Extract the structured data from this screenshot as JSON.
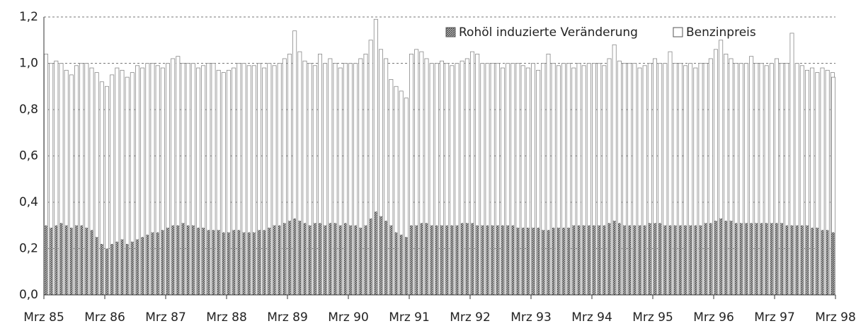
{
  "chart_data": {
    "type": "bar",
    "categories": [
      "Mrz 85",
      null,
      null,
      null,
      null,
      null,
      null,
      null,
      null,
      null,
      null,
      null,
      "Mrz 86",
      null,
      null,
      null,
      null,
      null,
      null,
      null,
      null,
      null,
      null,
      null,
      "Mrz 87",
      null,
      null,
      null,
      null,
      null,
      null,
      null,
      null,
      null,
      null,
      null,
      "Mrz 88",
      null,
      null,
      null,
      null,
      null,
      null,
      null,
      null,
      null,
      null,
      null,
      "Mrz 89",
      null,
      null,
      null,
      null,
      null,
      null,
      null,
      null,
      null,
      null,
      null,
      "Mrz 90",
      null,
      null,
      null,
      null,
      null,
      null,
      null,
      null,
      null,
      null,
      null,
      "Mrz 91",
      null,
      null,
      null,
      null,
      null,
      null,
      null,
      null,
      null,
      null,
      null,
      "Mrz 92",
      null,
      null,
      null,
      null,
      null,
      null,
      null,
      null,
      null,
      null,
      null,
      "Mrz 93",
      null,
      null,
      null,
      null,
      null,
      null,
      null,
      null,
      null,
      null,
      null,
      "Mrz 94",
      null,
      null,
      null,
      null,
      null,
      null,
      null,
      null,
      null,
      null,
      null,
      "Mrz 95",
      null,
      null,
      null,
      null,
      null,
      null,
      null,
      null,
      null,
      null,
      null,
      "Mrz 96",
      null,
      null,
      null,
      null,
      null,
      null,
      null,
      null,
      null,
      null,
      null,
      "Mrz 97",
      null,
      null,
      null,
      null,
      null,
      null,
      null,
      null,
      null,
      null,
      null,
      "Mrz 98"
    ],
    "series": [
      {
        "name": "Benzinpreis",
        "color": "#ffffff",
        "hatch": false,
        "values": [
          1.04,
          1.0,
          1.01,
          1.0,
          0.97,
          0.95,
          0.99,
          1.0,
          1.0,
          0.98,
          0.96,
          0.92,
          0.9,
          0.95,
          0.98,
          0.97,
          0.94,
          0.96,
          0.99,
          0.98,
          1.0,
          1.0,
          0.99,
          0.98,
          1.0,
          1.02,
          1.03,
          1.0,
          1.0,
          1.0,
          0.98,
          0.99,
          1.0,
          1.0,
          0.97,
          0.96,
          0.97,
          0.98,
          1.0,
          1.0,
          0.99,
          0.99,
          1.0,
          0.98,
          1.0,
          0.99,
          1.0,
          1.02,
          1.04,
          1.14,
          1.05,
          1.01,
          1.0,
          0.99,
          1.04,
          1.0,
          1.02,
          1.0,
          0.98,
          1.0,
          1.0,
          1.0,
          1.02,
          1.04,
          1.1,
          1.19,
          1.06,
          1.02,
          0.93,
          0.9,
          0.88,
          0.85,
          1.04,
          1.06,
          1.05,
          1.02,
          1.0,
          1.0,
          1.01,
          1.0,
          0.99,
          1.0,
          1.01,
          1.02,
          1.05,
          1.04,
          1.0,
          1.0,
          1.0,
          1.0,
          0.98,
          1.0,
          1.0,
          1.0,
          0.99,
          0.98,
          1.0,
          0.97,
          1.0,
          1.04,
          1.0,
          0.99,
          1.0,
          1.0,
          0.98,
          1.0,
          0.99,
          1.0,
          1.0,
          1.0,
          0.99,
          1.02,
          1.08,
          1.01,
          1.0,
          1.0,
          1.0,
          0.98,
          0.99,
          1.0,
          1.02,
          1.0,
          1.0,
          1.05,
          1.0,
          1.0,
          0.99,
          1.0,
          0.98,
          1.0,
          1.0,
          1.02,
          1.06,
          1.1,
          1.04,
          1.02,
          1.0,
          1.0,
          1.0,
          1.03,
          1.0,
          1.0,
          0.99,
          1.0,
          1.02,
          1.0,
          1.0,
          1.13,
          1.0,
          0.99,
          0.97,
          0.98,
          0.96,
          0.98,
          0.97,
          0.96,
          0.94
        ]
      },
      {
        "name": "Rohöl induzierte Veränderung",
        "color": "#5a5a5a",
        "hatch": true,
        "values": [
          0.3,
          0.29,
          0.3,
          0.31,
          0.3,
          0.29,
          0.3,
          0.3,
          0.29,
          0.28,
          0.25,
          0.22,
          0.2,
          0.22,
          0.23,
          0.24,
          0.22,
          0.23,
          0.24,
          0.25,
          0.26,
          0.27,
          0.27,
          0.28,
          0.29,
          0.3,
          0.3,
          0.31,
          0.3,
          0.3,
          0.29,
          0.29,
          0.28,
          0.28,
          0.28,
          0.27,
          0.27,
          0.28,
          0.28,
          0.27,
          0.27,
          0.27,
          0.28,
          0.28,
          0.29,
          0.3,
          0.3,
          0.31,
          0.32,
          0.33,
          0.32,
          0.31,
          0.3,
          0.31,
          0.31,
          0.3,
          0.31,
          0.31,
          0.3,
          0.31,
          0.3,
          0.3,
          0.29,
          0.3,
          0.33,
          0.36,
          0.34,
          0.32,
          0.3,
          0.27,
          0.26,
          0.25,
          0.3,
          0.3,
          0.31,
          0.31,
          0.3,
          0.3,
          0.3,
          0.3,
          0.3,
          0.3,
          0.31,
          0.31,
          0.31,
          0.3,
          0.3,
          0.3,
          0.3,
          0.3,
          0.3,
          0.3,
          0.3,
          0.29,
          0.29,
          0.29,
          0.29,
          0.29,
          0.28,
          0.28,
          0.29,
          0.29,
          0.29,
          0.29,
          0.3,
          0.3,
          0.3,
          0.3,
          0.3,
          0.3,
          0.3,
          0.31,
          0.32,
          0.31,
          0.3,
          0.3,
          0.3,
          0.3,
          0.3,
          0.31,
          0.31,
          0.31,
          0.3,
          0.3,
          0.3,
          0.3,
          0.3,
          0.3,
          0.3,
          0.3,
          0.31,
          0.31,
          0.32,
          0.33,
          0.32,
          0.32,
          0.31,
          0.31,
          0.31,
          0.31,
          0.31,
          0.31,
          0.31,
          0.31,
          0.31,
          0.31,
          0.3,
          0.3,
          0.3,
          0.3,
          0.3,
          0.29,
          0.29,
          0.28,
          0.28,
          0.27,
          0.27
        ]
      }
    ],
    "ylim": [
      0,
      1.2
    ],
    "yticks": [
      {
        "value": 0,
        "label": "0,0"
      },
      {
        "value": 0.2,
        "label": "0,2"
      },
      {
        "value": 0.4,
        "label": "0,4"
      },
      {
        "value": 0.6,
        "label": "0,6"
      },
      {
        "value": 0.8,
        "label": "0,8"
      },
      {
        "value": 1.0,
        "label": "1,0"
      },
      {
        "value": 1.2,
        "label": "1,2"
      }
    ],
    "grid": true,
    "legend": "top-right"
  }
}
